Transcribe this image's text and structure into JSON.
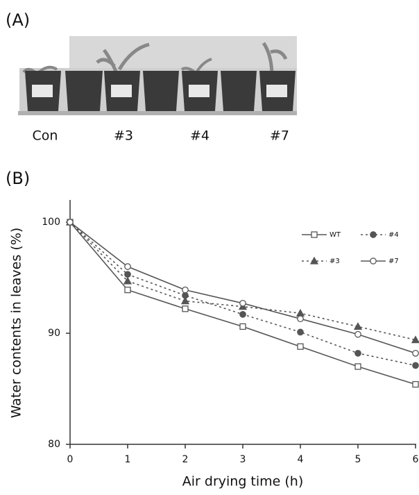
{
  "panel_a": {
    "label": "(A)",
    "photo_labels": [
      "Con",
      "#3",
      "#4",
      "#7"
    ]
  },
  "panel_b": {
    "label": "(B)"
  },
  "chart_data": {
    "type": "line",
    "x_label": "Air drying time (h)",
    "y_label": "Water contents in leaves (%)",
    "x": [
      0,
      1,
      2,
      3,
      4,
      5,
      6
    ],
    "series": [
      {
        "name": "WT",
        "color": "#555555",
        "marker": "square-open",
        "line_style": "solid",
        "values": [
          100,
          93.9,
          92.2,
          90.6,
          88.8,
          87.0,
          85.4
        ]
      },
      {
        "name": "#4",
        "color": "#555555",
        "marker": "circle-filled",
        "line_style": "dotted",
        "values": [
          100,
          95.3,
          93.4,
          91.7,
          90.1,
          88.2,
          87.1
        ]
      },
      {
        "name": "#3",
        "color": "#555555",
        "marker": "triangle-filled",
        "line_style": "dotted",
        "values": [
          100,
          94.7,
          92.9,
          92.4,
          91.8,
          90.6,
          89.4
        ]
      },
      {
        "name": "#7",
        "color": "#555555",
        "marker": "circle-open",
        "line_style": "solid",
        "values": [
          100,
          96.0,
          93.9,
          92.7,
          91.3,
          89.9,
          88.2
        ]
      }
    ],
    "xlim": [
      0,
      6
    ],
    "xticks": [
      0,
      1,
      2,
      3,
      4,
      5,
      6
    ],
    "ylim": [
      80,
      102
    ],
    "yticks": [
      80,
      90,
      100
    ]
  }
}
